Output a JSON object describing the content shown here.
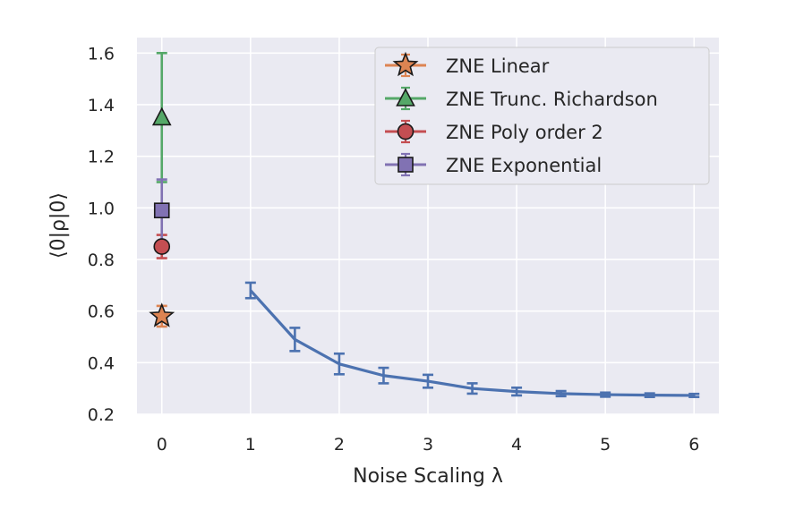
{
  "chart_data": {
    "type": "scatter",
    "xlabel": "Noise Scaling λ",
    "ylabel": "⟨0|ρ|0⟩",
    "xlim": [
      -0.28,
      6.28
    ],
    "ylim": [
      0.2,
      1.66
    ],
    "x_ticks": [
      0,
      1,
      2,
      3,
      4,
      5,
      6
    ],
    "y_ticks": [
      0.2,
      0.4,
      0.6,
      0.8,
      1.0,
      1.2,
      1.4,
      1.6
    ],
    "x_tick_labels": [
      "0",
      "1",
      "2",
      "3",
      "4",
      "5",
      "6"
    ],
    "y_tick_labels": [
      "0.2",
      "0.4",
      "0.6",
      "0.8",
      "1.0",
      "1.2",
      "1.4",
      "1.6"
    ],
    "grid": true,
    "legend_position": "top-right",
    "colors": {
      "background": "#eaeaf2",
      "grid": "#ffffff",
      "measured": "#4c72b0",
      "linear": "#dd8452",
      "richardson": "#55a868",
      "poly": "#c44e52",
      "exponential": "#8172b3"
    },
    "measured": {
      "x": [
        1.0,
        1.5,
        2.0,
        2.5,
        3.0,
        3.5,
        4.0,
        4.5,
        5.0,
        5.5,
        6.0
      ],
      "y": [
        0.68,
        0.49,
        0.395,
        0.35,
        0.328,
        0.3,
        0.288,
        0.28,
        0.276,
        0.274,
        0.273
      ],
      "yerr": [
        0.03,
        0.045,
        0.04,
        0.03,
        0.025,
        0.02,
        0.015,
        0.01,
        0.008,
        0.007,
        0.006
      ]
    },
    "series": [
      {
        "name": "ZNE Linear",
        "marker": "star",
        "color": "#dd8452",
        "x": 0,
        "y": 0.58,
        "yerr": 0.04
      },
      {
        "name": "ZNE Trunc. Richardson",
        "marker": "triangle",
        "color": "#55a868",
        "x": 0,
        "y": 1.35,
        "yerr": 0.25
      },
      {
        "name": "ZNE Poly order 2",
        "marker": "circle",
        "color": "#c44e52",
        "x": 0,
        "y": 0.85,
        "yerr": 0.045
      },
      {
        "name": "ZNE Exponential",
        "marker": "square",
        "color": "#8172b3",
        "x": 0,
        "y": 0.99,
        "yerr": 0.12
      }
    ]
  }
}
